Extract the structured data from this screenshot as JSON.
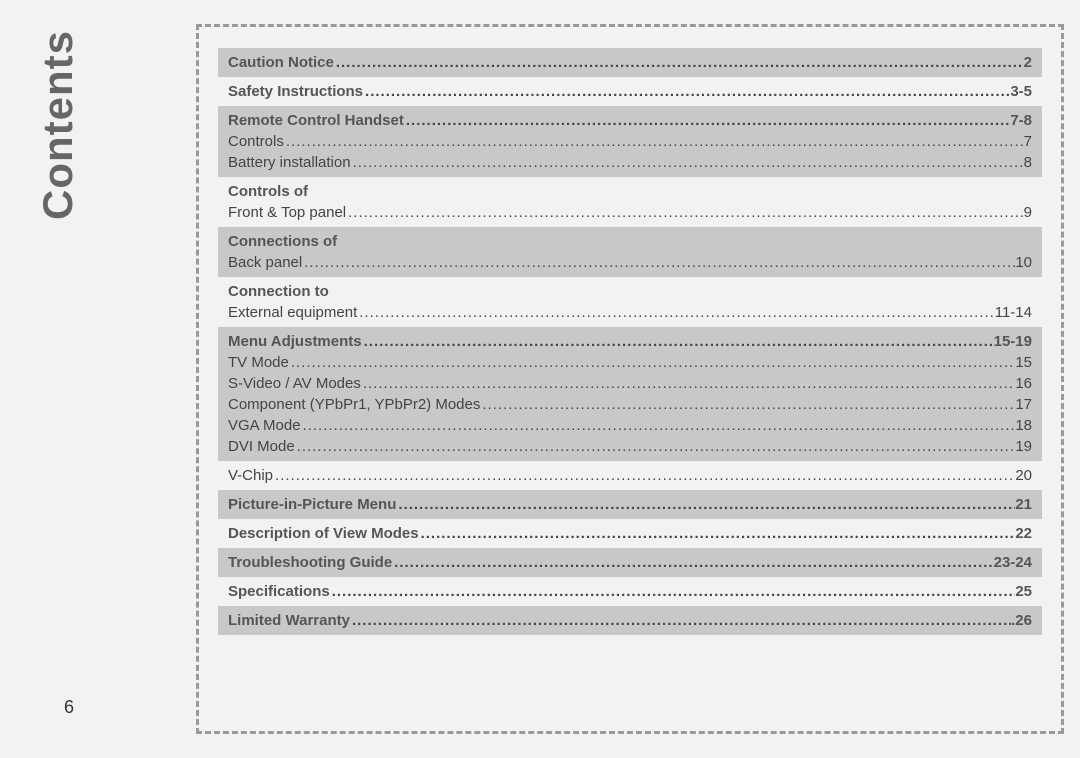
{
  "sidebar_title": "Contents",
  "page_number": "6",
  "colors": {
    "background": "#f2f2f2",
    "shaded_row": "#c8c8c8",
    "border": "#999999",
    "text": "#444444",
    "sidebar_text": "#666666"
  },
  "typography": {
    "sidebar_fontsize": 42,
    "row_fontsize": 15,
    "page_num_fontsize": 18
  },
  "layout": {
    "dashed_border_width": 3,
    "dash_style": "dashed"
  },
  "toc": [
    {
      "shaded": true,
      "items": [
        {
          "label": "Caution Notice",
          "page": "2",
          "bold": true
        }
      ]
    },
    {
      "shaded": false,
      "items": [
        {
          "label": "Safety Instructions",
          "page": "3-5",
          "bold": true
        }
      ]
    },
    {
      "shaded": true,
      "items": [
        {
          "label": "Remote Control Handset",
          "page": "7-8",
          "bold": true
        },
        {
          "label": "Controls",
          "page": "7",
          "bold": false
        },
        {
          "label": "Battery installation",
          "page": "8",
          "bold": false
        }
      ]
    },
    {
      "shaded": false,
      "items": [
        {
          "label": "Controls of",
          "page": "",
          "bold": true,
          "header_only": true
        },
        {
          "label": "Front & Top panel",
          "page": "9",
          "bold": false
        }
      ]
    },
    {
      "shaded": true,
      "items": [
        {
          "label": "Connections of",
          "page": "",
          "bold": true,
          "header_only": true
        },
        {
          "label": "Back panel",
          "page": "10",
          "bold": false
        }
      ]
    },
    {
      "shaded": false,
      "items": [
        {
          "label": "Connection to",
          "page": "",
          "bold": true,
          "header_only": true
        },
        {
          "label": "External equipment",
          "page": "11-14",
          "bold": false
        }
      ]
    },
    {
      "shaded": true,
      "items": [
        {
          "label": "Menu Adjustments",
          "page": "15-19",
          "bold": true
        },
        {
          "label": "TV Mode",
          "page": "15",
          "bold": false
        },
        {
          "label": "S-Video / AV Modes",
          "page": "16",
          "bold": false
        },
        {
          "label": "Component (YPbPr1, YPbPr2) Modes",
          "page": "17",
          "bold": false
        },
        {
          "label": "VGA Mode",
          "page": "18",
          "bold": false
        },
        {
          "label": "DVI Mode",
          "page": "19",
          "bold": false
        }
      ]
    },
    {
      "shaded": false,
      "items": [
        {
          "label": "V-Chip",
          "page": "20",
          "bold": false
        }
      ]
    },
    {
      "shaded": true,
      "items": [
        {
          "label": "Picture-in-Picture Menu",
          "page": "21",
          "bold": true
        }
      ]
    },
    {
      "shaded": false,
      "items": [
        {
          "label": "Description of View Modes",
          "page": "22",
          "bold": true
        }
      ]
    },
    {
      "shaded": true,
      "items": [
        {
          "label": "Troubleshooting Guide",
          "page": "23-24",
          "bold": true
        }
      ]
    },
    {
      "shaded": false,
      "items": [
        {
          "label": "Specifications",
          "page": "25",
          "bold": true
        }
      ]
    },
    {
      "shaded": true,
      "items": [
        {
          "label": "Limited Warranty",
          "page": ".26",
          "bold": true
        }
      ]
    }
  ]
}
